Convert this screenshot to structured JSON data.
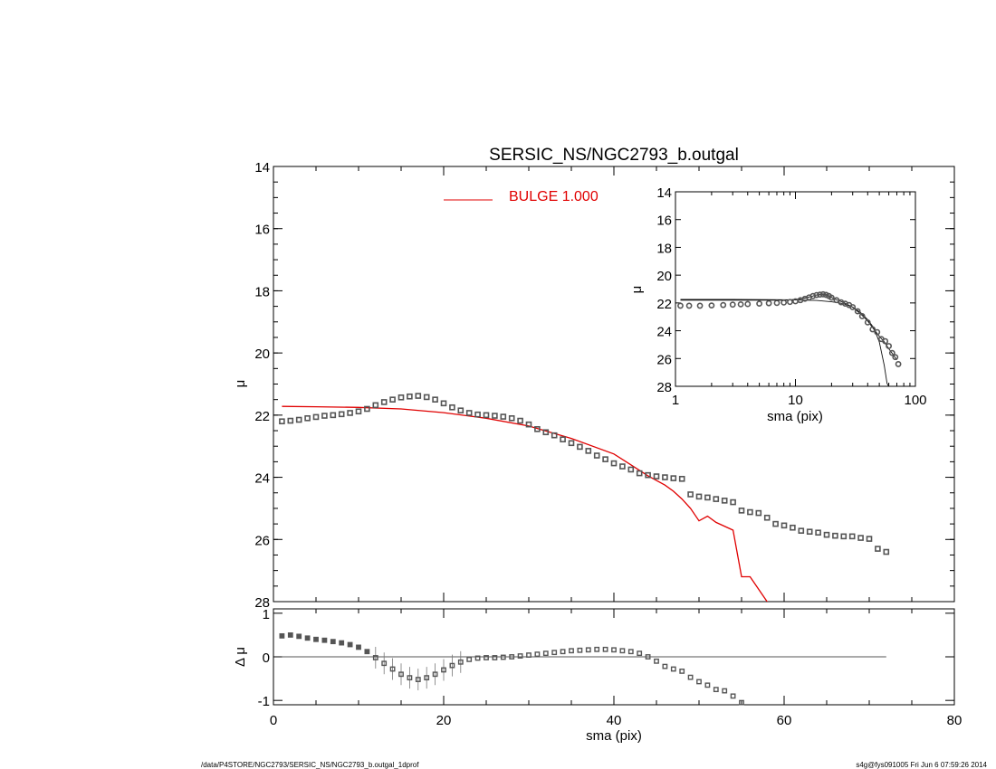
{
  "chart_data": [
    {
      "type": "scatter",
      "panel": "main",
      "title": "SERSIC_NS/NGC2793_b.outgal",
      "xlabel": "",
      "ylabel": "μ",
      "xlim": [
        0,
        80
      ],
      "ylim": [
        28,
        14
      ],
      "y_inverted": true,
      "yticks": [
        "14",
        "16",
        "18",
        "20",
        "22",
        "24",
        "26",
        "28"
      ],
      "legend": [
        {
          "name": "BULGE  1.000",
          "color": "#e00000"
        }
      ],
      "series": [
        {
          "name": "data",
          "marker": "square",
          "color": "#555555",
          "x": [
            1,
            2,
            3,
            4,
            5,
            6,
            7,
            8,
            9,
            10,
            11,
            12,
            13,
            14,
            15,
            16,
            17,
            18,
            19,
            20,
            21,
            22,
            23,
            24,
            25,
            26,
            27,
            28,
            29,
            30,
            31,
            32,
            33,
            34,
            35,
            36,
            37,
            38,
            39,
            40,
            41,
            42,
            43,
            44,
            45,
            46,
            47,
            48,
            49,
            50,
            51,
            52,
            53,
            54,
            55,
            56,
            57,
            58,
            59,
            60,
            61,
            62,
            63,
            64,
            65,
            66,
            67,
            68,
            69,
            70,
            71,
            72
          ],
          "y": [
            22.2,
            22.18,
            22.15,
            22.1,
            22.06,
            22.02,
            22.0,
            21.97,
            21.93,
            21.88,
            21.8,
            21.68,
            21.58,
            21.5,
            21.43,
            21.4,
            21.38,
            21.42,
            21.5,
            21.62,
            21.75,
            21.85,
            21.93,
            21.98,
            22.0,
            22.02,
            22.05,
            22.1,
            22.18,
            22.3,
            22.45,
            22.55,
            22.65,
            22.78,
            22.9,
            23.02,
            23.15,
            23.3,
            23.42,
            23.55,
            23.65,
            23.75,
            23.87,
            23.93,
            23.97,
            24.0,
            24.03,
            24.05,
            24.55,
            24.62,
            24.65,
            24.7,
            24.75,
            24.8,
            25.07,
            25.12,
            25.15,
            25.3,
            25.5,
            25.55,
            25.62,
            25.72,
            25.75,
            25.78,
            25.85,
            25.88,
            25.9,
            25.9,
            25.95,
            25.98,
            26.3,
            26.4
          ]
        },
        {
          "name": "",
          "type": "line",
          "color": "#e00000",
          "x": [
            1,
            5,
            10,
            15,
            20,
            25,
            30,
            35,
            40,
            42,
            44,
            46,
            47,
            48,
            49,
            50,
            51,
            52,
            54,
            55,
            56,
            57,
            58,
            59
          ],
          "y": [
            21.72,
            21.73,
            21.75,
            21.8,
            21.92,
            22.1,
            22.35,
            22.75,
            23.25,
            23.6,
            23.95,
            24.25,
            24.45,
            24.7,
            25.0,
            25.4,
            25.25,
            25.45,
            25.7,
            27.2,
            27.2,
            27.6,
            28.0,
            28.2
          ]
        }
      ]
    },
    {
      "type": "scatter",
      "panel": "residual",
      "xlabel": "sma (pix)",
      "ylabel": "Δ μ",
      "xlim": [
        0,
        80
      ],
      "ylim": [
        -1,
        1
      ],
      "xticks": [
        "0",
        "20",
        "40",
        "60",
        "80"
      ],
      "yticks": [
        "1",
        "0",
        "-1"
      ],
      "series": [
        {
          "name": "residual",
          "marker": "square",
          "color": "#555555",
          "x": [
            1,
            2,
            3,
            4,
            5,
            6,
            7,
            8,
            9,
            10,
            11,
            12,
            13,
            14,
            15,
            16,
            17,
            18,
            19,
            20,
            21,
            22,
            23,
            24,
            25,
            26,
            27,
            28,
            29,
            30,
            31,
            32,
            33,
            34,
            35,
            36,
            37,
            38,
            39,
            40,
            41,
            42,
            43,
            44,
            45,
            46,
            47,
            48,
            49,
            50,
            51,
            52,
            53,
            54,
            55
          ],
          "y": [
            0.48,
            0.5,
            0.47,
            0.43,
            0.4,
            0.38,
            0.35,
            0.32,
            0.28,
            0.22,
            0.12,
            -0.02,
            -0.15,
            -0.28,
            -0.4,
            -0.48,
            -0.52,
            -0.48,
            -0.4,
            -0.3,
            -0.2,
            -0.12,
            -0.06,
            -0.03,
            -0.02,
            -0.02,
            -0.01,
            0.0,
            0.02,
            0.04,
            0.06,
            0.08,
            0.1,
            0.12,
            0.14,
            0.15,
            0.16,
            0.17,
            0.17,
            0.16,
            0.14,
            0.12,
            0.08,
            0.0,
            -0.1,
            -0.22,
            -0.28,
            -0.33,
            -0.47,
            -0.57,
            -0.65,
            -0.75,
            -0.78,
            -0.9,
            -1.05
          ]
        },
        {
          "name": "",
          "type": "line",
          "color": "#555555",
          "x": [
            1,
            72
          ],
          "y": [
            0,
            0
          ]
        }
      ]
    },
    {
      "type": "scatter",
      "panel": "inset",
      "xlabel": "sma (pix)",
      "ylabel": "μ",
      "x_scale": "log",
      "xlim": [
        1,
        100
      ],
      "ylim": [
        28,
        14
      ],
      "y_inverted": true,
      "xticks": [
        "1",
        "10",
        "100"
      ],
      "yticks": [
        "14",
        "16",
        "18",
        "20",
        "22",
        "24",
        "26",
        "28"
      ],
      "series": [
        {
          "name": "data",
          "marker": "circle",
          "color": "#555555",
          "x": [
            1.1,
            1.3,
            1.6,
            2,
            2.5,
            3,
            3.5,
            4,
            5,
            6,
            7,
            8,
            9,
            10,
            11,
            12,
            13,
            14,
            15,
            16,
            17,
            18,
            19,
            20,
            22,
            24,
            26,
            28,
            30,
            33,
            36,
            40,
            44,
            48,
            52,
            56,
            60,
            64,
            68,
            72
          ],
          "y": [
            22.2,
            22.2,
            22.2,
            22.18,
            22.15,
            22.12,
            22.1,
            22.08,
            22.05,
            22.02,
            22.0,
            21.97,
            21.93,
            21.88,
            21.8,
            21.7,
            21.6,
            21.5,
            21.43,
            21.4,
            21.38,
            21.42,
            21.5,
            21.62,
            21.8,
            21.95,
            22.05,
            22.15,
            22.3,
            22.6,
            22.95,
            23.4,
            23.9,
            24.1,
            24.6,
            24.75,
            25.1,
            25.6,
            25.9,
            26.4
          ]
        },
        {
          "name": "",
          "type": "line",
          "color": "#111111",
          "x": [
            1.1,
            3,
            6,
            10,
            15,
            20,
            25,
            30,
            35,
            40,
            45,
            50,
            55,
            58,
            60
          ],
          "y": [
            21.75,
            21.75,
            21.76,
            21.78,
            21.82,
            21.92,
            22.05,
            22.3,
            22.7,
            23.2,
            23.8,
            24.8,
            26.5,
            27.8,
            28.0
          ]
        },
        {
          "name": "",
          "type": "line",
          "color": "#111111",
          "x": [
            1.1,
            2,
            3,
            5,
            8,
            10,
            12,
            14,
            15,
            16,
            17,
            18,
            19,
            20,
            22,
            25,
            30,
            35,
            40,
            45,
            50,
            55,
            60,
            65,
            70
          ],
          "y": [
            21.8,
            21.8,
            21.8,
            21.8,
            21.8,
            21.75,
            21.65,
            21.5,
            21.42,
            21.38,
            21.37,
            21.4,
            21.5,
            21.6,
            21.78,
            21.95,
            22.3,
            22.8,
            23.3,
            23.9,
            24.4,
            24.8,
            25.3,
            25.7,
            26.1
          ]
        }
      ]
    }
  ],
  "footer": {
    "left": "/data/P4STORE/NGC2793/SERSIC_NS/NGC2793_b.outgal_1dprof",
    "right": "s4g@fys091005  Fri Jun  6 07:59:26 2014"
  }
}
